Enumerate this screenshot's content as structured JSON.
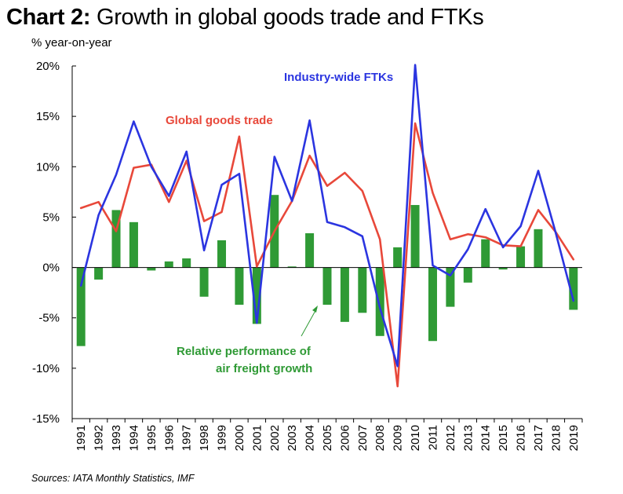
{
  "title_lead": "Chart 2:",
  "title_rest": "Growth in global goods trade and FTKs",
  "ylabel": "% year-on-year",
  "source": "Sources: IATA Monthly Statistics, IMF",
  "colors": {
    "ftk": "#2b35e0",
    "trade": "#e8483a",
    "relative": "#2f9a35",
    "axis": "#000000"
  },
  "chart_data": {
    "type": "bar+line",
    "ylim": [
      -15,
      20
    ],
    "y_ticks": [
      -15,
      -10,
      -5,
      0,
      5,
      10,
      15,
      20
    ],
    "y_tick_labels": [
      "-15%",
      "-10%",
      "-5%",
      "0%",
      "5%",
      "10%",
      "15%",
      "20%"
    ],
    "categories": [
      "1991",
      "1992",
      "1993",
      "1994",
      "1995",
      "1996",
      "1997",
      "1998",
      "1999",
      "2000",
      "2001",
      "2002",
      "2003",
      "2004",
      "2005",
      "2006",
      "2007",
      "2008",
      "2009",
      "2010",
      "2011",
      "2012",
      "2013",
      "2014",
      "2015",
      "2016",
      "2017",
      "2018",
      "2019"
    ],
    "series": [
      {
        "name": "Relative performance of air freight growth",
        "kind": "bar",
        "values": [
          -7.8,
          -1.2,
          5.7,
          4.5,
          -0.3,
          0.6,
          0.9,
          -2.9,
          2.7,
          -3.7,
          -5.6,
          7.2,
          0.1,
          3.4,
          -3.7,
          -5.4,
          -4.5,
          -6.8,
          2.0,
          6.2,
          -7.3,
          -3.9,
          -1.5,
          2.8,
          -0.2,
          2.1,
          3.8,
          0.0,
          -4.2
        ]
      },
      {
        "name": "Global goods trade",
        "kind": "line",
        "values": [
          5.9,
          6.5,
          3.6,
          9.9,
          10.2,
          6.5,
          10.6,
          4.6,
          5.5,
          13.0,
          0.1,
          3.6,
          6.6,
          11.1,
          8.1,
          9.4,
          7.6,
          2.8,
          -11.8,
          14.3,
          7.4,
          2.8,
          3.3,
          3.0,
          2.2,
          2.1,
          5.7,
          3.5,
          0.8
        ]
      },
      {
        "name": "Industry-wide FTKs",
        "kind": "line",
        "values": [
          -1.8,
          5.2,
          9.2,
          14.5,
          10.0,
          7.1,
          11.5,
          1.7,
          8.2,
          9.3,
          -5.5,
          11.0,
          6.6,
          14.6,
          4.5,
          4.0,
          3.1,
          -4.0,
          -9.8,
          20.1,
          0.2,
          -0.8,
          1.8,
          5.8,
          2.0,
          4.1,
          9.6,
          3.4,
          -3.3
        ]
      }
    ],
    "annotations": {
      "ftk": "Industry-wide FTKs",
      "trade": "Global goods trade",
      "relative_line1": "Relative performance of",
      "relative_line2": "air freight growth"
    },
    "grid": false,
    "legend": "none (inline labels)"
  }
}
